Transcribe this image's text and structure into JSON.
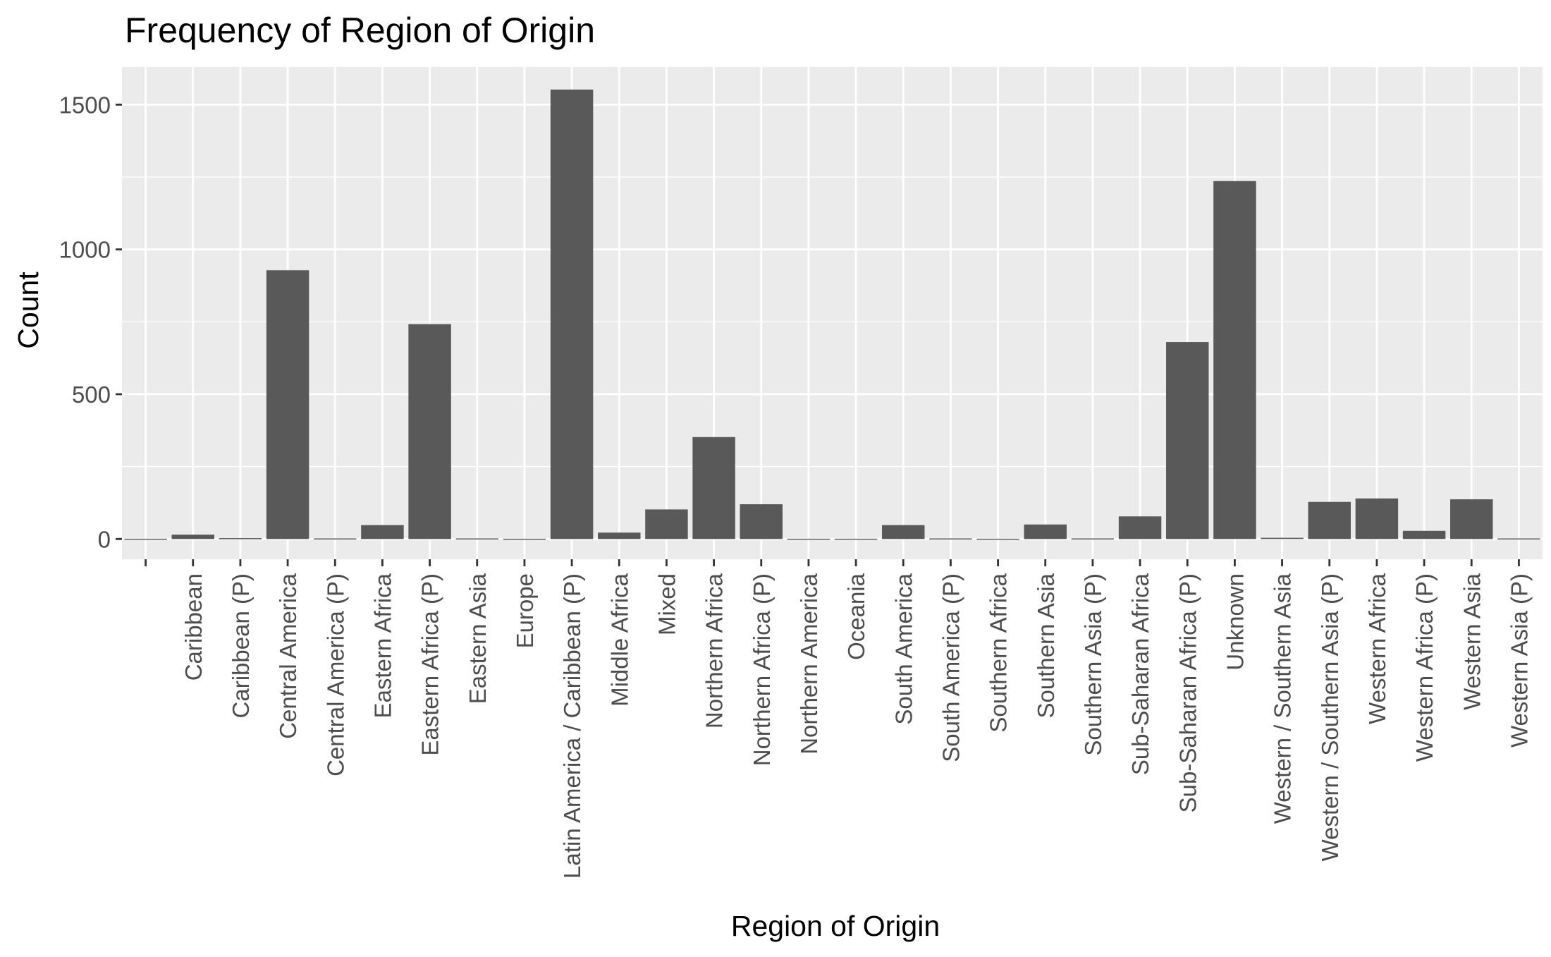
{
  "chart_data": {
    "type": "bar",
    "title": "Frequency of Region of Origin",
    "xlabel": "Region of Origin",
    "ylabel": "Count",
    "ylim": [
      -70,
      1630
    ],
    "yticks": [
      0,
      500,
      1000,
      1500
    ],
    "ytick_labels": [
      "0",
      "500",
      "1000",
      "1500"
    ],
    "grid": true,
    "legend": "none",
    "colors": {
      "bar": "#595959",
      "panel": "#ebebeb",
      "grid": "#ffffff",
      "tick": "#333333"
    },
    "categories": [
      "",
      "Caribbean",
      "Caribbean (P)",
      "Central America",
      "Central America (P)",
      "Eastern Africa",
      "Eastern Africa (P)",
      "Eastern Asia",
      "Europe",
      "Latin America / Caribbean (P)",
      "Middle Africa",
      "Mixed",
      "Northern Africa",
      "Northern Africa (P)",
      "Northern America",
      "Oceania",
      "South America",
      "South America (P)",
      "Southern Africa",
      "Southern Asia",
      "Southern Asia (P)",
      "Sub-Saharan Africa",
      "Sub-Saharan Africa (P)",
      "Unknown",
      "Western / Southern Asia",
      "Western / Southern Asia (P)",
      "Western Africa",
      "Western Africa (P)",
      "Western Asia",
      "Western Asia (P)"
    ],
    "values": [
      1,
      15,
      3,
      928,
      2,
      48,
      742,
      2,
      1,
      1552,
      22,
      102,
      352,
      120,
      1,
      1,
      48,
      2,
      1,
      50,
      2,
      78,
      680,
      1236,
      4,
      128,
      140,
      28,
      137,
      2
    ]
  }
}
